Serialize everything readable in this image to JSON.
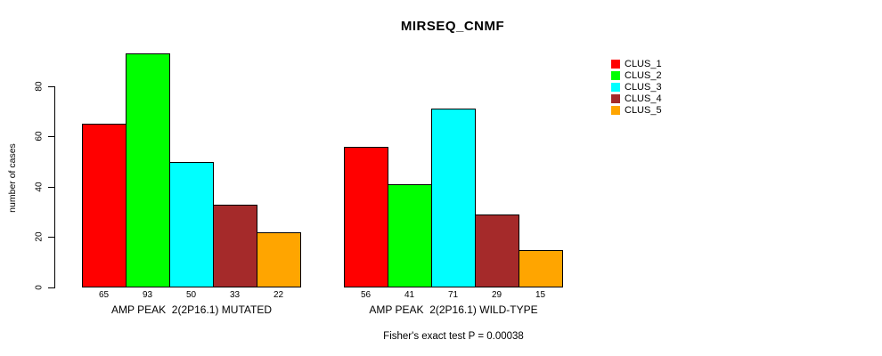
{
  "chart_data": {
    "type": "bar",
    "title": "MIRSEQ_CNMF",
    "ylabel": "number of cases",
    "xlabel": "",
    "ylim": [
      0,
      93
    ],
    "yticks": [
      0,
      20,
      40,
      60,
      80
    ],
    "grid": false,
    "legend_position": "right",
    "groups": [
      {
        "label": "AMP PEAK  2(2P16.1) MUTATED",
        "values": [
          65,
          93,
          50,
          33,
          22
        ]
      },
      {
        "label": "AMP PEAK  2(2P16.1) WILD-TYPE",
        "values": [
          56,
          41,
          71,
          29,
          15
        ]
      }
    ],
    "series_colors": [
      "#FF0000",
      "#00FF00",
      "#00FFFF",
      "#A52A2A",
      "#FFA500"
    ],
    "legend": [
      {
        "label": "CLUS_1",
        "color": "#FF0000"
      },
      {
        "label": "CLUS_2",
        "color": "#00FF00"
      },
      {
        "label": "CLUS_3",
        "color": "#00FFFF"
      },
      {
        "label": "CLUS_4",
        "color": "#A52A2A"
      },
      {
        "label": "CLUS_5",
        "color": "#FFA500"
      }
    ],
    "footnote": "Fisher's exact test P = 0.00038",
    "axis_color": "#000000",
    "background_color": "#FFFFFF"
  }
}
